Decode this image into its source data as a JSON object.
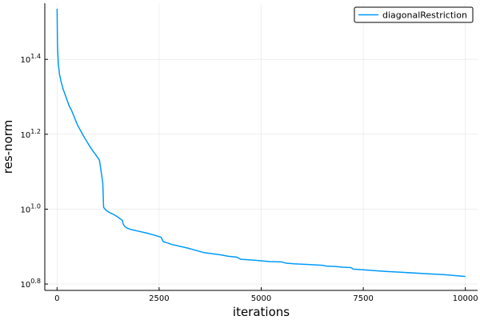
{
  "chart_data": {
    "type": "line",
    "title": "",
    "xlabel": "iterations",
    "ylabel": "res-norm",
    "y_scale": "log10",
    "xlim": [
      -300,
      10300
    ],
    "ylim_exponent": [
      0.783,
      1.55
    ],
    "x_ticks": [
      {
        "value": 0,
        "label": "0"
      },
      {
        "value": 2500,
        "label": "2500"
      },
      {
        "value": 5000,
        "label": "5000"
      },
      {
        "value": 7500,
        "label": "7500"
      },
      {
        "value": 10000,
        "label": "10000"
      }
    ],
    "y_ticks": [
      {
        "exponent": 0.8,
        "base": "10",
        "power": "0.8"
      },
      {
        "exponent": 1.0,
        "base": "10",
        "power": "1.0"
      },
      {
        "exponent": 1.2,
        "base": "10",
        "power": "1.2"
      },
      {
        "exponent": 1.4,
        "base": "10",
        "power": "1.4"
      }
    ],
    "grid": true,
    "legend_position": "top-right",
    "series": [
      {
        "name": "diagonalRestriction",
        "color": "#009af9",
        "points_log10": [
          [
            1,
            1.535
          ],
          [
            10,
            1.44
          ],
          [
            30,
            1.39
          ],
          [
            60,
            1.36
          ],
          [
            100,
            1.34
          ],
          [
            150,
            1.32
          ],
          [
            200,
            1.305
          ],
          [
            250,
            1.29
          ],
          [
            300,
            1.275
          ],
          [
            350,
            1.265
          ],
          [
            400,
            1.252
          ],
          [
            450,
            1.238
          ],
          [
            500,
            1.225
          ],
          [
            550,
            1.215
          ],
          [
            600,
            1.205
          ],
          [
            650,
            1.195
          ],
          [
            700,
            1.186
          ],
          [
            750,
            1.177
          ],
          [
            800,
            1.168
          ],
          [
            850,
            1.16
          ],
          [
            900,
            1.152
          ],
          [
            950,
            1.145
          ],
          [
            1000,
            1.137
          ],
          [
            1040,
            1.13
          ],
          [
            1060,
            1.115
          ],
          [
            1080,
            1.1
          ],
          [
            1100,
            1.085
          ],
          [
            1120,
            1.07
          ],
          [
            1140,
            1.005
          ],
          [
            1200,
            0.997
          ],
          [
            1300,
            0.99
          ],
          [
            1400,
            0.985
          ],
          [
            1500,
            0.978
          ],
          [
            1600,
            0.97
          ],
          [
            1620,
            0.96
          ],
          [
            1650,
            0.955
          ],
          [
            1700,
            0.95
          ],
          [
            1800,
            0.946
          ],
          [
            2000,
            0.941
          ],
          [
            2200,
            0.936
          ],
          [
            2400,
            0.93
          ],
          [
            2550,
            0.925
          ],
          [
            2600,
            0.913
          ],
          [
            2700,
            0.91
          ],
          [
            2800,
            0.906
          ],
          [
            3000,
            0.901
          ],
          [
            3200,
            0.896
          ],
          [
            3400,
            0.89
          ],
          [
            3600,
            0.884
          ],
          [
            3800,
            0.881
          ],
          [
            4000,
            0.878
          ],
          [
            4200,
            0.874
          ],
          [
            4400,
            0.872
          ],
          [
            4500,
            0.866
          ],
          [
            4800,
            0.864
          ],
          [
            5000,
            0.862
          ],
          [
            5200,
            0.86
          ],
          [
            5500,
            0.859
          ],
          [
            5600,
            0.856
          ],
          [
            5800,
            0.854
          ],
          [
            6000,
            0.853
          ],
          [
            6200,
            0.852
          ],
          [
            6500,
            0.85
          ],
          [
            6600,
            0.848
          ],
          [
            6800,
            0.847
          ],
          [
            7000,
            0.845
          ],
          [
            7200,
            0.844
          ],
          [
            7250,
            0.84
          ],
          [
            7500,
            0.838
          ],
          [
            8000,
            0.834
          ],
          [
            8500,
            0.831
          ],
          [
            9000,
            0.828
          ],
          [
            9500,
            0.825
          ],
          [
            10000,
            0.82
          ]
        ]
      }
    ]
  }
}
